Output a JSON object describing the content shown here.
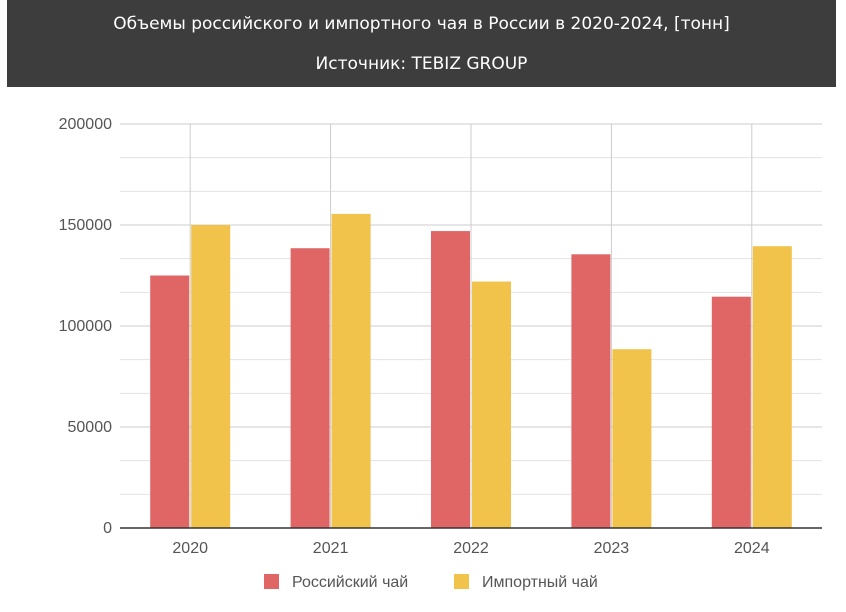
{
  "chart_data": {
    "type": "bar",
    "title": "Объемы российского и импортного чая в России в 2020-2024, [тонн]",
    "subtitle": "Источник: TEBIZ GROUP",
    "categories": [
      "2020",
      "2021",
      "2022",
      "2023",
      "2024"
    ],
    "series": [
      {
        "name": "Российский чай",
        "color": "#e06666",
        "values": [
          125000,
          138500,
          147000,
          135500,
          114500
        ]
      },
      {
        "name": "Импортный чай",
        "color": "#f1c34a",
        "values": [
          150000,
          155500,
          122000,
          88500,
          139500
        ]
      }
    ],
    "ylim": [
      0,
      200000
    ],
    "yticks": [
      "0",
      "50000",
      "100000",
      "150000",
      "200000"
    ],
    "grid": true,
    "legend": "bottom"
  }
}
